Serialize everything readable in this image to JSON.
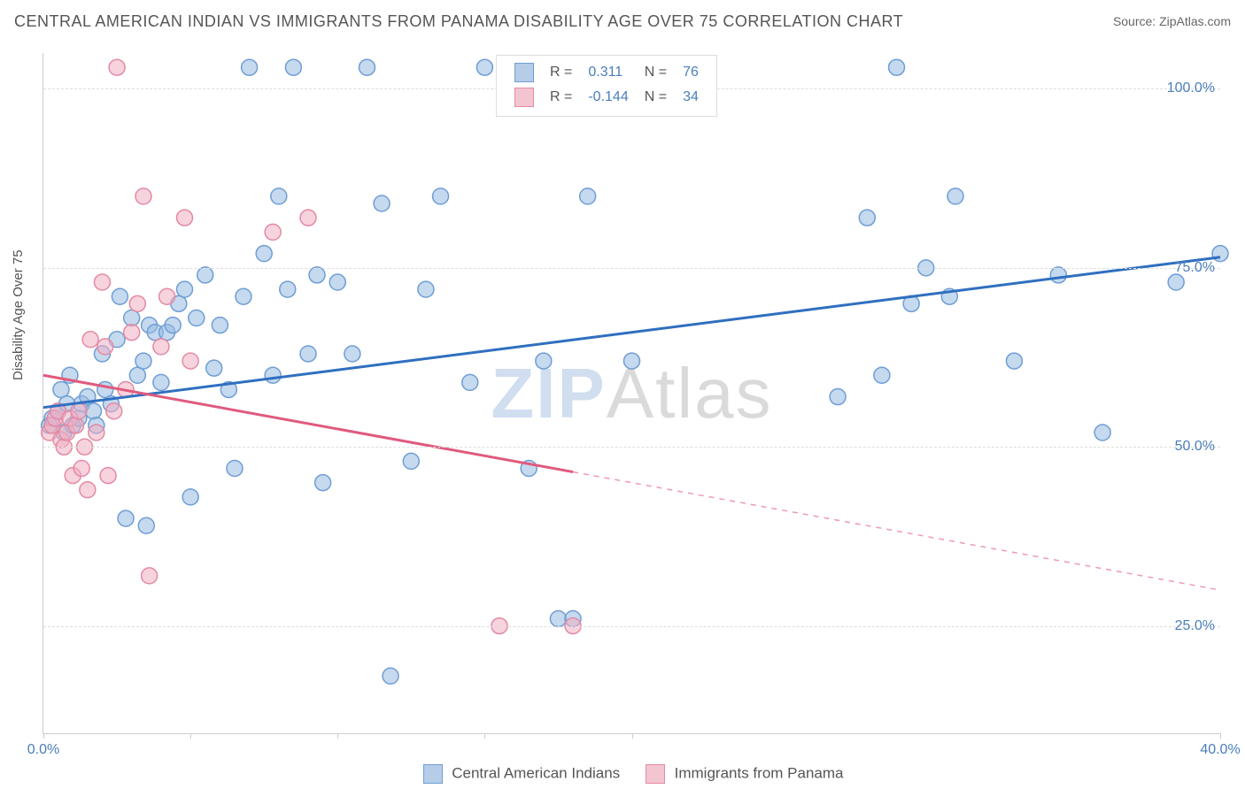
{
  "header": {
    "title": "CENTRAL AMERICAN INDIAN VS IMMIGRANTS FROM PANAMA DISABILITY AGE OVER 75 CORRELATION CHART",
    "source_text": "Source: ZipAtlas.com"
  },
  "axes": {
    "ylabel": "Disability Age Over 75",
    "xlim": [
      0,
      40
    ],
    "ylim": [
      10,
      105
    ],
    "xticks": [
      0,
      5,
      10,
      15,
      20,
      40
    ],
    "xtick_labels": [
      "0.0%",
      "",
      "",
      "",
      "",
      "40.0%"
    ],
    "yticks": [
      25,
      50,
      75,
      100
    ],
    "ytick_labels": [
      "25.0%",
      "50.0%",
      "75.0%",
      "100.0%"
    ],
    "grid_color": "#dddddd",
    "axis_color": "#cccccc",
    "tick_label_color": "#4a7ebb",
    "tick_label_fontsize": 16,
    "ylabel_color": "#555555"
  },
  "legend_top": {
    "rows": [
      {
        "swatch_fill": "#b5cde9",
        "swatch_border": "#6f9ed4",
        "r_label": "R =",
        "r_value": "0.311",
        "n_label": "N =",
        "n_value": "76"
      },
      {
        "swatch_fill": "#f3c5d1",
        "swatch_border": "#e48aa3",
        "r_label": "R =",
        "r_value": "-0.144",
        "n_label": "N =",
        "n_value": "34"
      }
    ]
  },
  "legend_bottom": {
    "items": [
      {
        "swatch_fill": "#b5cde9",
        "swatch_border": "#6f9ed4",
        "label": "Central American Indians"
      },
      {
        "swatch_fill": "#f3c5d1",
        "swatch_border": "#e48aa3",
        "label": "Immigrants from Panama"
      }
    ]
  },
  "watermark": {
    "zip": "ZIP",
    "atlas": "Atlas"
  },
  "chart": {
    "type": "scatter",
    "marker_radius": 9,
    "marker_stroke_width": 1.5,
    "series": [
      {
        "name": "Central American Indians",
        "fill": "rgba(150, 185, 225, 0.55)",
        "stroke": "#6f9ed4",
        "trend": {
          "x1": 0,
          "y1": 55.5,
          "x2": 40,
          "y2": 76.5,
          "stroke": "#2f6fc0",
          "width": 3,
          "solid_to_x": 40
        },
        "points": [
          [
            0.2,
            53
          ],
          [
            0.3,
            54
          ],
          [
            0.5,
            55
          ],
          [
            0.6,
            58
          ],
          [
            0.7,
            52
          ],
          [
            0.8,
            56
          ],
          [
            0.9,
            60
          ],
          [
            1.0,
            53
          ],
          [
            1.2,
            54
          ],
          [
            1.3,
            56
          ],
          [
            1.5,
            57
          ],
          [
            1.7,
            55
          ],
          [
            1.8,
            53
          ],
          [
            2.0,
            63
          ],
          [
            2.1,
            58
          ],
          [
            2.3,
            56
          ],
          [
            2.5,
            65
          ],
          [
            2.6,
            71
          ],
          [
            2.8,
            40
          ],
          [
            3.0,
            68
          ],
          [
            3.2,
            60
          ],
          [
            3.4,
            62
          ],
          [
            3.5,
            39
          ],
          [
            3.6,
            67
          ],
          [
            3.8,
            66
          ],
          [
            4.0,
            59
          ],
          [
            4.2,
            66
          ],
          [
            4.4,
            67
          ],
          [
            4.6,
            70
          ],
          [
            4.8,
            72
          ],
          [
            5.0,
            43
          ],
          [
            5.2,
            68
          ],
          [
            5.5,
            74
          ],
          [
            5.8,
            61
          ],
          [
            6.0,
            67
          ],
          [
            6.3,
            58
          ],
          [
            6.5,
            47
          ],
          [
            6.8,
            71
          ],
          [
            7.0,
            103
          ],
          [
            7.5,
            77
          ],
          [
            7.8,
            60
          ],
          [
            8.0,
            85
          ],
          [
            8.3,
            72
          ],
          [
            8.5,
            103
          ],
          [
            9.0,
            63
          ],
          [
            9.3,
            74
          ],
          [
            9.5,
            45
          ],
          [
            10.0,
            73
          ],
          [
            10.5,
            63
          ],
          [
            11.0,
            103
          ],
          [
            11.5,
            84
          ],
          [
            11.8,
            18
          ],
          [
            12.5,
            48
          ],
          [
            13.0,
            72
          ],
          [
            13.5,
            85
          ],
          [
            14.5,
            59
          ],
          [
            15.0,
            103
          ],
          [
            16.5,
            47
          ],
          [
            17.0,
            62
          ],
          [
            17.5,
            26
          ],
          [
            18.0,
            26
          ],
          [
            18.5,
            85
          ],
          [
            20.0,
            62
          ],
          [
            27.0,
            57
          ],
          [
            28.0,
            82
          ],
          [
            28.5,
            60
          ],
          [
            29.0,
            103
          ],
          [
            29.5,
            70
          ],
          [
            30.0,
            75
          ],
          [
            30.8,
            71
          ],
          [
            31.0,
            85
          ],
          [
            33.0,
            62
          ],
          [
            34.5,
            74
          ],
          [
            36.0,
            52
          ],
          [
            38.5,
            73
          ],
          [
            40.0,
            77
          ]
        ]
      },
      {
        "name": "Immigrants from Panama",
        "fill": "rgba(240, 175, 195, 0.55)",
        "stroke": "#e48aa3",
        "trend": {
          "x1": 0,
          "y1": 60,
          "x2": 40,
          "y2": 30,
          "stroke": "#e05a7d",
          "width": 3,
          "solid_to_x": 18
        },
        "points": [
          [
            0.2,
            52
          ],
          [
            0.3,
            53
          ],
          [
            0.4,
            54
          ],
          [
            0.5,
            55
          ],
          [
            0.6,
            51
          ],
          [
            0.7,
            50
          ],
          [
            0.8,
            52
          ],
          [
            0.9,
            54
          ],
          [
            1.0,
            46
          ],
          [
            1.1,
            53
          ],
          [
            1.2,
            55
          ],
          [
            1.3,
            47
          ],
          [
            1.4,
            50
          ],
          [
            1.5,
            44
          ],
          [
            1.6,
            65
          ],
          [
            1.8,
            52
          ],
          [
            2.0,
            73
          ],
          [
            2.1,
            64
          ],
          [
            2.2,
            46
          ],
          [
            2.4,
            55
          ],
          [
            2.5,
            103
          ],
          [
            2.8,
            58
          ],
          [
            3.0,
            66
          ],
          [
            3.2,
            70
          ],
          [
            3.4,
            85
          ],
          [
            3.6,
            32
          ],
          [
            4.0,
            64
          ],
          [
            4.2,
            71
          ],
          [
            4.8,
            82
          ],
          [
            5.0,
            62
          ],
          [
            7.8,
            80
          ],
          [
            9.0,
            82
          ],
          [
            15.5,
            25
          ],
          [
            18.0,
            25
          ]
        ]
      }
    ]
  },
  "style": {
    "background_color": "#ffffff",
    "title_color": "#555555",
    "title_fontsize": 18,
    "source_color": "#666666",
    "source_fontsize": 14
  }
}
